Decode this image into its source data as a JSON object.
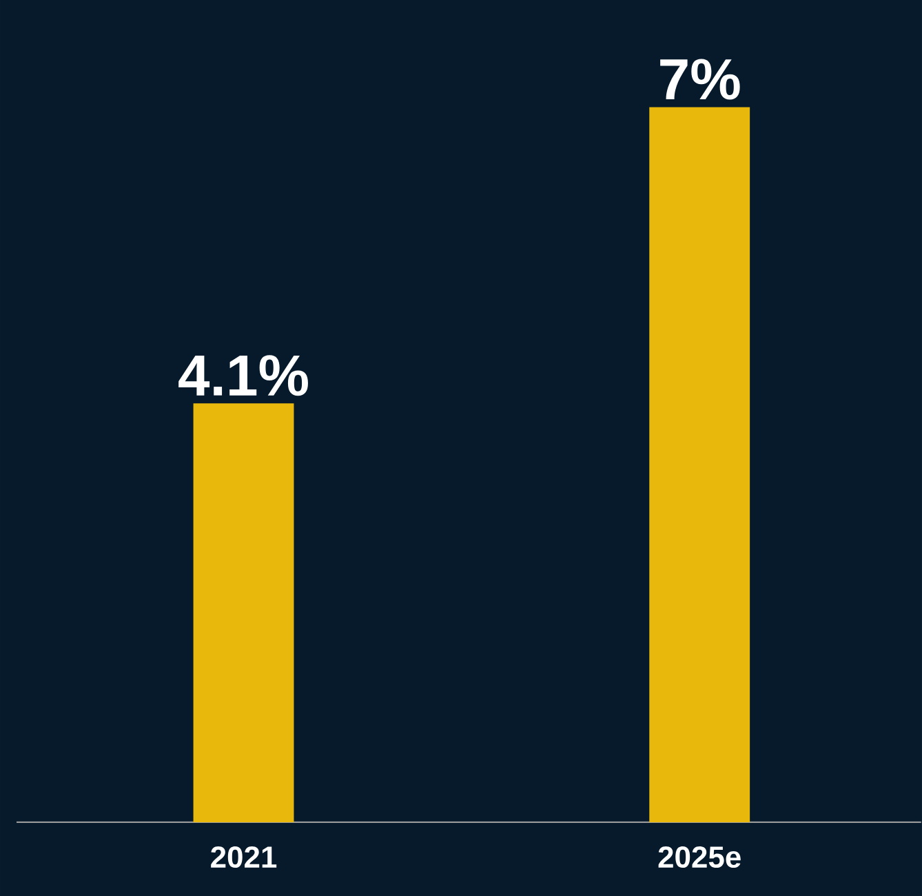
{
  "chart_data": {
    "type": "bar",
    "categories": [
      "2021",
      "2025e"
    ],
    "values": [
      4.1,
      7
    ],
    "color": "#e8b80c",
    "value_labels": [
      "4.1%",
      "7%"
    ]
  }
}
